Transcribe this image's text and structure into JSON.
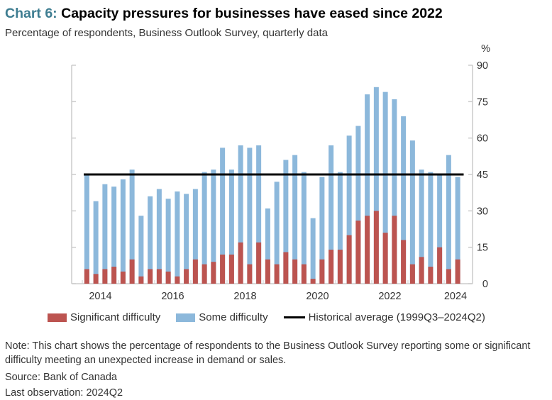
{
  "header": {
    "chart_number": "Chart 6:",
    "title": "Capacity pressures for businesses have eased since 2022",
    "subtitle": "Percentage of respondents, Business Outlook Survey, quarterly data"
  },
  "chart_data": {
    "type": "bar",
    "stacked": true,
    "quarters": [
      "2014Q1",
      "2014Q2",
      "2014Q3",
      "2014Q4",
      "2015Q1",
      "2015Q2",
      "2015Q3",
      "2015Q4",
      "2016Q1",
      "2016Q2",
      "2016Q3",
      "2016Q4",
      "2017Q1",
      "2017Q2",
      "2017Q3",
      "2017Q4",
      "2018Q1",
      "2018Q2",
      "2018Q3",
      "2018Q4",
      "2019Q1",
      "2019Q2",
      "2019Q3",
      "2019Q4",
      "2020Q1",
      "2020Q2",
      "2020Q3",
      "2020Q4",
      "2021Q1",
      "2021Q2",
      "2021Q3",
      "2021Q4",
      "2022Q1",
      "2022Q2",
      "2022Q3",
      "2022Q4",
      "2023Q1",
      "2023Q2",
      "2023Q3",
      "2023Q4",
      "2024Q1",
      "2024Q2"
    ],
    "x_tick_labels": [
      "2014",
      "2016",
      "2018",
      "2020",
      "2022",
      "2024"
    ],
    "y_unit": "%",
    "ylim": [
      0,
      90
    ],
    "y_ticks": [
      0,
      15,
      30,
      45,
      60,
      75,
      90
    ],
    "y_axis_side": "right",
    "series": [
      {
        "name": "Significant difficulty",
        "color": "#bc5450",
        "values": [
          6,
          4,
          6,
          7,
          5,
          10,
          3,
          6,
          6,
          5,
          3,
          6,
          10,
          8,
          9,
          12,
          12,
          17,
          8,
          17,
          10,
          8,
          13,
          10,
          8,
          2,
          10,
          14,
          14,
          20,
          26,
          28,
          30,
          21,
          28,
          18,
          8,
          11,
          7,
          15,
          6,
          10
        ]
      },
      {
        "name": "Some difficulty",
        "color": "#8cb8db",
        "total_values": [
          45,
          34,
          41,
          40,
          43,
          47,
          28,
          36,
          39,
          35,
          38,
          37,
          39,
          46,
          47,
          56,
          47,
          57,
          56,
          57,
          31,
          42,
          51,
          53,
          46,
          27,
          44,
          57,
          46,
          61,
          65,
          78,
          81,
          79,
          76,
          69,
          59,
          47,
          46,
          45,
          53,
          44
        ]
      }
    ],
    "reference_line": {
      "name": "Historical average (1999Q3–2024Q2)",
      "value": 45,
      "color": "#000000"
    },
    "legend_position": "bottom",
    "grid": false
  },
  "notes": {
    "note": "Note: This chart shows the percentage of respondents to the Business Outlook Survey reporting some or significant difficulty meeting an unexpected increase in demand or sales.",
    "source": "Source: Bank of Canada",
    "last_observation": "Last observation: 2024Q2"
  }
}
